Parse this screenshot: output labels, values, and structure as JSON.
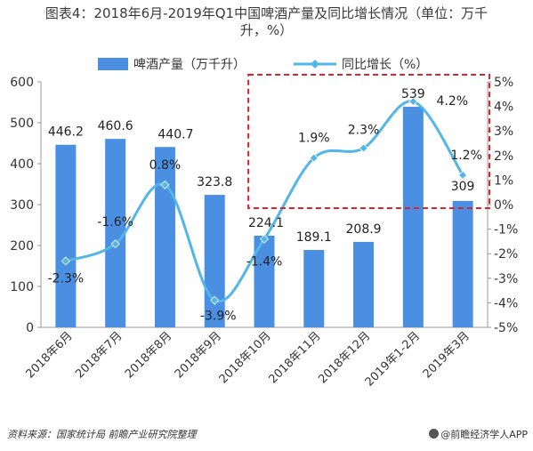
{
  "page": {
    "title_line1": "图表4：2018年6月-2019年Q1中国啤酒产量及同比增长情况（单位：万千",
    "title_line2": "升，%）",
    "source": "资料来源：国家统计局 前瞻产业研究院整理",
    "brand": "@前瞻经济学人APP"
  },
  "chart_data": {
    "type": "bar+line",
    "categories": [
      "2018年6月",
      "2018年7月",
      "2018年8月",
      "2018年9月",
      "2018年10月",
      "2018年11月",
      "2018年12月",
      "2019年1-2月",
      "2019年3月"
    ],
    "series": [
      {
        "name": "啤酒产量（万千升）",
        "type": "bar",
        "axis": "left",
        "color": "#4a8fe2",
        "values": [
          446.2,
          460.6,
          440.7,
          323.8,
          224.1,
          189.1,
          208.9,
          539,
          309
        ],
        "labels": [
          "446.2",
          "460.6",
          "440.7",
          "323.8",
          "224.1",
          "189.1",
          "208.9",
          "539",
          "309"
        ]
      },
      {
        "name": "同比增长（%）",
        "type": "line",
        "axis": "right",
        "color": "#52b6e6",
        "values": [
          -2.3,
          -1.6,
          0.8,
          -3.9,
          -1.4,
          1.9,
          2.3,
          4.2,
          1.2
        ],
        "labels": [
          "-2.3%",
          "-1.6%",
          "0.8%",
          "-3.9%",
          "-1.4%",
          "1.9%",
          "2.3%",
          "4.2%",
          "1.2%"
        ]
      }
    ],
    "y_left": {
      "min": 0,
      "max": 600,
      "ticks": [
        "0",
        "100",
        "200",
        "300",
        "400",
        "500",
        "600"
      ]
    },
    "y_right": {
      "min": -5,
      "max": 5,
      "ticks": [
        "-5%",
        "-4%",
        "-3%",
        "-2%",
        "-1%",
        "0%",
        "1%",
        "2%",
        "3%",
        "4%",
        "5%"
      ]
    },
    "legend_position": "top",
    "grid": false,
    "highlight": {
      "from_category": "2018年10月",
      "to_category": "2019年3月",
      "style": "dashed",
      "color": "#d9232d"
    }
  }
}
